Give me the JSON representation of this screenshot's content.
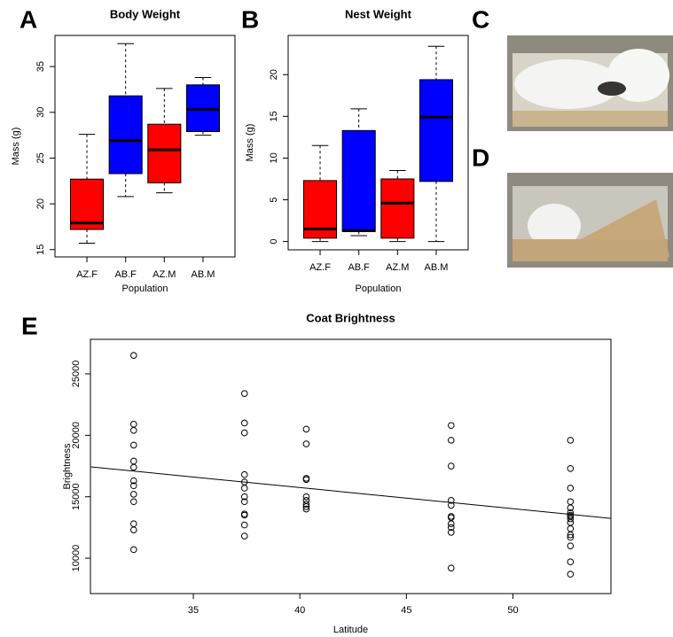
{
  "panel_labels": [
    "A",
    "B",
    "C",
    "D",
    "E"
  ],
  "chart_data": [
    {
      "type": "box",
      "title": "Body Weight",
      "x_label": "Population",
      "y_label": "Mass (g)",
      "categories": [
        "AZ.F",
        "AB.F",
        "AZ.M",
        "AB.M"
      ],
      "colors": [
        "#ff0000",
        "#0000ff",
        "#ff0000",
        "#0000ff"
      ],
      "boxes": [
        {
          "min": 15.7,
          "q1": 17.2,
          "median": 17.9,
          "q3": 22.7,
          "max": 27.6
        },
        {
          "min": 20.8,
          "q1": 23.3,
          "median": 26.9,
          "q3": 31.8,
          "max": 37.5
        },
        {
          "min": 21.2,
          "q1": 22.3,
          "median": 25.9,
          "q3": 28.7,
          "max": 32.6
        },
        {
          "min": 27.5,
          "q1": 27.9,
          "median": 30.3,
          "q3": 33.0,
          "max": 33.8
        }
      ],
      "ylim": [
        14.2,
        38.4
      ],
      "yticks": [
        15,
        20,
        25,
        30,
        35
      ]
    },
    {
      "type": "box",
      "title": "Nest Weight",
      "x_label": "Population",
      "y_label": "Mass (g)",
      "categories": [
        "AZ.F",
        "AB.F",
        "AZ.M",
        "AB.M"
      ],
      "colors": [
        "#ff0000",
        "#0000ff",
        "#ff0000",
        "#0000ff"
      ],
      "boxes": [
        {
          "min": 0,
          "q1": 0.4,
          "median": 1.5,
          "q3": 7.3,
          "max": 11.5
        },
        {
          "min": 0.7,
          "q1": 1.2,
          "median": 1.3,
          "q3": 13.3,
          "max": 15.9
        },
        {
          "min": 0,
          "q1": 0.4,
          "median": 4.6,
          "q3": 7.5,
          "max": 8.5
        },
        {
          "min": 0,
          "q1": 7.2,
          "median": 14.9,
          "q3": 19.4,
          "max": 23.4
        }
      ],
      "ylim": [
        -1.0,
        24.7
      ],
      "yticks": [
        0,
        5,
        10,
        15,
        20
      ]
    },
    {
      "type": "scatter",
      "title": "Coat Brightness",
      "x_label": "Latitude",
      "y_label": "Brightness",
      "marker_color": "#000000",
      "x": [
        32.2,
        32.2,
        32.2,
        32.2,
        32.2,
        32.2,
        32.2,
        32.2,
        32.2,
        32.2,
        32.2,
        32.2,
        32.2,
        37.4,
        37.4,
        37.4,
        37.4,
        37.4,
        37.4,
        37.4,
        37.4,
        37.4,
        37.4,
        37.4,
        37.4,
        40.3,
        40.3,
        40.3,
        40.3,
        40.3,
        40.3,
        40.3,
        40.3,
        40.3,
        47.1,
        47.1,
        47.1,
        47.1,
        47.1,
        47.1,
        47.1,
        47.1,
        47.1,
        47.1,
        47.1,
        52.7,
        52.7,
        52.7,
        52.7,
        52.7,
        52.7,
        52.7,
        52.7,
        52.7,
        52.7,
        52.7,
        52.7,
        52.7,
        52.7,
        52.7,
        52.7
      ],
      "y": [
        26500,
        20900,
        20400,
        19200,
        17900,
        17400,
        16300,
        15900,
        15200,
        14600,
        12800,
        12300,
        10700,
        23400,
        21000,
        20200,
        16800,
        16200,
        15700,
        15000,
        14600,
        13600,
        13500,
        12700,
        11800,
        20500,
        19300,
        16500,
        16400,
        15000,
        14700,
        14400,
        14200,
        14000,
        20800,
        19600,
        17500,
        14700,
        14300,
        13400,
        13300,
        12800,
        12500,
        12100,
        9200,
        19600,
        17300,
        15700,
        14600,
        14100,
        13700,
        13500,
        13400,
        13200,
        12900,
        12400,
        11900,
        11700,
        11000,
        9700,
        8700
      ],
      "trend_line": {
        "x": [
          30.2,
          54.6
        ],
        "y": [
          17430,
          13240
        ]
      },
      "xlim": [
        30.17,
        54.6
      ],
      "xticks": [
        35,
        40,
        45,
        50
      ],
      "ylim": [
        7120,
        27810
      ],
      "yticks": [
        10000,
        15000,
        20000,
        25000
      ]
    }
  ]
}
